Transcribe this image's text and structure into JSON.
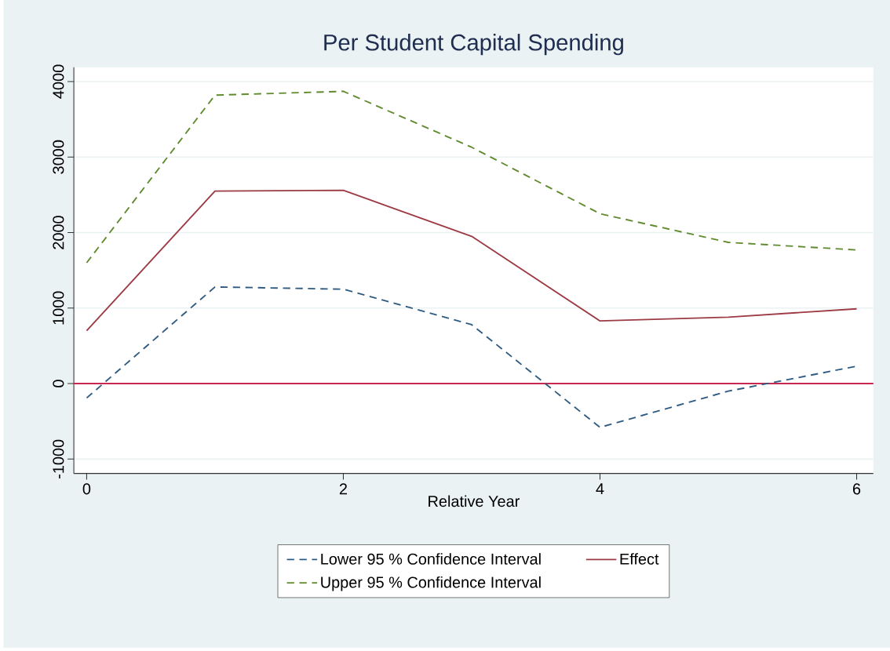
{
  "chart_data": {
    "type": "line",
    "title": "Per Student Capital Spending",
    "xlabel": "Relative Year",
    "x": [
      0,
      1,
      2,
      3,
      4,
      5,
      6
    ],
    "series": [
      {
        "name": "Lower 95 % Confidence Interval",
        "color": "#2e5b82",
        "line_style": "dashed",
        "values": [
          -190,
          1280,
          1250,
          780,
          -580,
          -100,
          230
        ]
      },
      {
        "name": "Effect",
        "color": "#9c3b44",
        "line_style": "solid",
        "values": [
          700,
          2550,
          2560,
          1950,
          830,
          880,
          990
        ]
      },
      {
        "name": "Upper 95 % Confidence Interval",
        "color": "#5f8a2e",
        "line_style": "dashed",
        "values": [
          1600,
          3820,
          3870,
          3130,
          2250,
          1870,
          1770
        ]
      }
    ],
    "xlim": [
      -0.1,
      6.13
    ],
    "ylim": [
      -1190,
      4190
    ],
    "xticks": [
      0,
      2,
      4,
      6
    ],
    "yticks": [
      -1000,
      0,
      1000,
      2000,
      3000,
      4000
    ],
    "ref_lines": [
      {
        "axis": "y",
        "value": 0,
        "color": "#c8284f",
        "line_style": "solid"
      }
    ],
    "grid": "y",
    "legend": "bottom",
    "marker": "none"
  }
}
